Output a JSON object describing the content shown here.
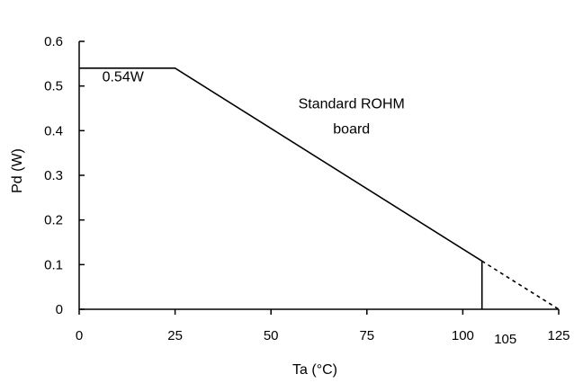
{
  "chart_data": {
    "type": "line",
    "title": "",
    "xlabel": "Ta (°C)",
    "ylabel": "Pd (W)",
    "xlim": [
      0,
      125
    ],
    "ylim": [
      0,
      0.6
    ],
    "x_ticks": [
      {
        "value": 0,
        "label": "0"
      },
      {
        "value": 25,
        "label": "25"
      },
      {
        "value": 50,
        "label": "50"
      },
      {
        "value": 75,
        "label": "75"
      },
      {
        "value": 100,
        "label": "100"
      },
      {
        "value": 125,
        "label": "125"
      }
    ],
    "y_ticks": [
      {
        "value": 0,
        "label": "0"
      },
      {
        "value": 0.1,
        "label": "0.1"
      },
      {
        "value": 0.2,
        "label": "0.2"
      },
      {
        "value": 0.3,
        "label": "0.3"
      },
      {
        "value": 0.4,
        "label": "0.4"
      },
      {
        "value": 0.5,
        "label": "0.5"
      },
      {
        "value": 0.6,
        "label": "0.6"
      }
    ],
    "grid": false,
    "legend": "none",
    "series": [
      {
        "line_style": "solid",
        "color": "#000000",
        "x": [
          0,
          25,
          105
        ],
        "y": [
          0.54,
          0.54,
          0.108
        ]
      },
      {
        "line_style": "dashed",
        "color": "#000000",
        "x": [
          105,
          125
        ],
        "y": [
          0.108,
          0
        ]
      }
    ],
    "vertical_markers": [
      {
        "x": 105,
        "y_from": 0,
        "y_to": 0.108,
        "label": "105"
      }
    ],
    "annotations": {
      "power_label": {
        "text": "0.54W",
        "x": 6,
        "y": 0.51
      },
      "board_label": {
        "lines": [
          "Standard ROHM",
          "board"
        ],
        "x": 71,
        "y": 0.43
      }
    }
  }
}
